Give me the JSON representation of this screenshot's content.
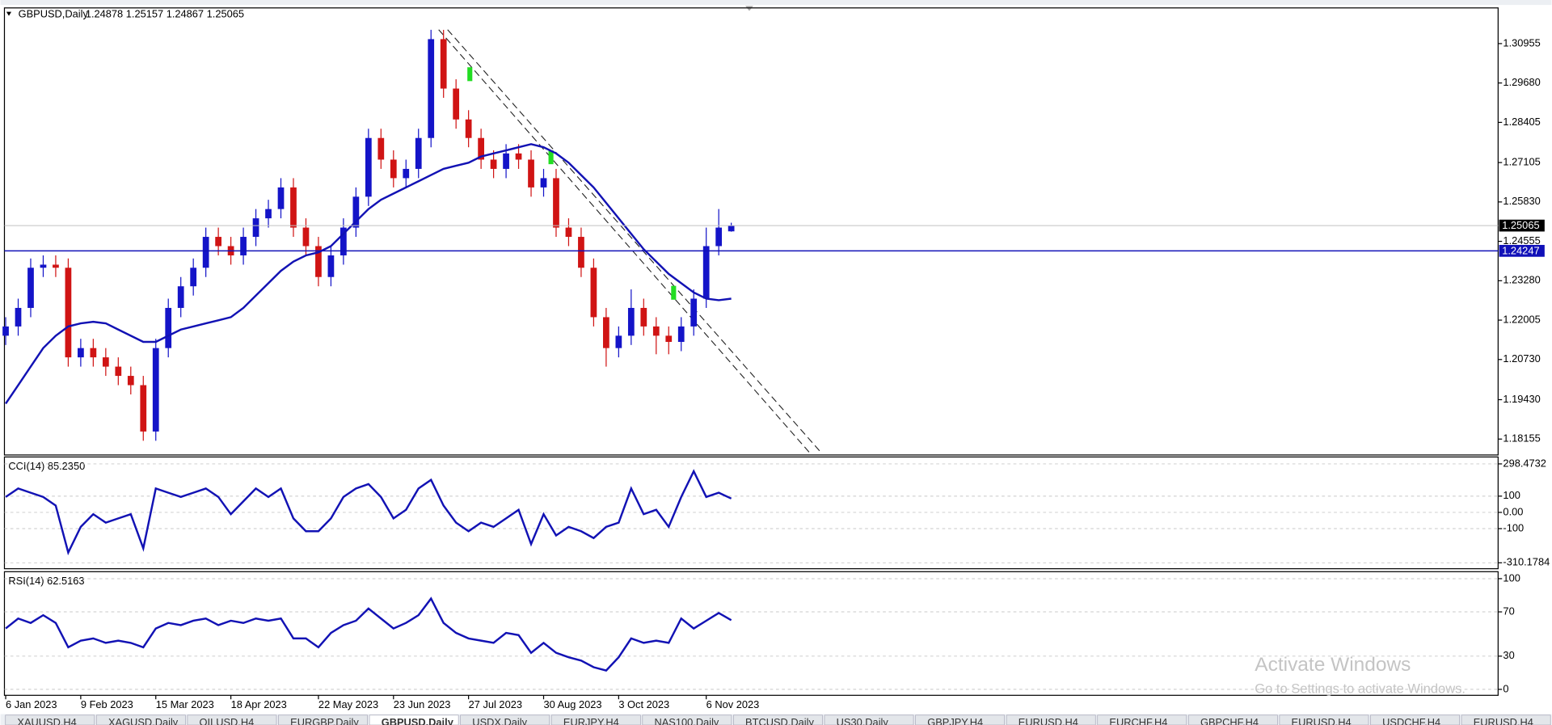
{
  "header": {
    "symbol": "GBPUSD,Daily",
    "ohlc": "1.24878 1.25157 1.24867 1.25065"
  },
  "chart_data": [
    {
      "type": "candlestick",
      "open": [
        1.215,
        1.218,
        1.224,
        1.237,
        1.238,
        1.237,
        1.208,
        1.211,
        1.208,
        1.205,
        1.202,
        1.199,
        1.184,
        1.211,
        1.224,
        1.231,
        1.237,
        1.247,
        1.244,
        1.241,
        1.247,
        1.253,
        1.256,
        1.263,
        1.25,
        1.244,
        1.234,
        1.241,
        1.25,
        1.26,
        1.279,
        1.272,
        1.266,
        1.269,
        1.279,
        1.311,
        1.295,
        1.285,
        1.279,
        1.272,
        1.269,
        1.274,
        1.272,
        1.263,
        1.266,
        1.25,
        1.247,
        1.237,
        1.221,
        1.211,
        1.215,
        1.224,
        1.218,
        1.215,
        1.213,
        1.218,
        1.227,
        1.244,
        1.24878
      ],
      "high": [
        1.221,
        1.227,
        1.24,
        1.241,
        1.241,
        1.24,
        1.214,
        1.214,
        1.211,
        1.208,
        1.205,
        1.202,
        1.214,
        1.227,
        1.234,
        1.24,
        1.25,
        1.25,
        1.247,
        1.25,
        1.256,
        1.259,
        1.266,
        1.266,
        1.253,
        1.247,
        1.244,
        1.253,
        1.263,
        1.282,
        1.282,
        1.275,
        1.272,
        1.282,
        1.314,
        1.314,
        1.298,
        1.288,
        1.282,
        1.275,
        1.277,
        1.277,
        1.275,
        1.269,
        1.269,
        1.253,
        1.25,
        1.24,
        1.224,
        1.218,
        1.23,
        1.227,
        1.221,
        1.218,
        1.221,
        1.23,
        1.25,
        1.256,
        1.25157
      ],
      "low": [
        1.212,
        1.215,
        1.221,
        1.234,
        1.234,
        1.205,
        1.205,
        1.205,
        1.202,
        1.199,
        1.196,
        1.181,
        1.181,
        1.208,
        1.221,
        1.228,
        1.234,
        1.241,
        1.238,
        1.238,
        1.244,
        1.25,
        1.253,
        1.247,
        1.241,
        1.231,
        1.231,
        1.238,
        1.247,
        1.257,
        1.269,
        1.263,
        1.263,
        1.266,
        1.276,
        1.292,
        1.282,
        1.276,
        1.269,
        1.266,
        1.266,
        1.269,
        1.26,
        1.26,
        1.247,
        1.244,
        1.234,
        1.218,
        1.205,
        1.208,
        1.212,
        1.215,
        1.209,
        1.209,
        1.21,
        1.215,
        1.224,
        1.241,
        1.24867
      ],
      "close": [
        1.218,
        1.224,
        1.237,
        1.238,
        1.237,
        1.208,
        1.211,
        1.208,
        1.205,
        1.202,
        1.199,
        1.184,
        1.211,
        1.224,
        1.231,
        1.237,
        1.247,
        1.244,
        1.241,
        1.247,
        1.253,
        1.256,
        1.263,
        1.25,
        1.244,
        1.234,
        1.241,
        1.25,
        1.26,
        1.279,
        1.272,
        1.266,
        1.269,
        1.279,
        1.311,
        1.295,
        1.285,
        1.279,
        1.272,
        1.269,
        1.274,
        1.272,
        1.263,
        1.266,
        1.25,
        1.247,
        1.237,
        1.221,
        1.211,
        1.215,
        1.224,
        1.218,
        1.215,
        1.213,
        1.218,
        1.227,
        1.244,
        1.25,
        1.25065
      ],
      "up_color": "#1414c8",
      "down_color": "#d01414",
      "series": [
        {
          "color": "#1212b4",
          "values": [
            1.193,
            1.199,
            1.205,
            1.211,
            1.215,
            1.218,
            1.219,
            1.2195,
            1.219,
            1.217,
            1.215,
            1.213,
            1.213,
            1.215,
            1.217,
            1.218,
            1.219,
            1.22,
            1.221,
            1.224,
            1.228,
            1.232,
            1.236,
            1.239,
            1.241,
            1.242,
            1.244,
            1.248,
            1.252,
            1.256,
            1.259,
            1.261,
            1.263,
            1.265,
            1.267,
            1.269,
            1.27,
            1.271,
            1.273,
            1.274,
            1.275,
            1.276,
            1.277,
            1.276,
            1.274,
            1.271,
            1.267,
            1.263,
            1.258,
            1.253,
            1.248,
            1.243,
            1.239,
            1.235,
            1.232,
            1.229,
            1.227,
            1.2265,
            1.227
          ]
        }
      ],
      "hlines": [
        {
          "value": 1.24247,
          "label": "1.24247",
          "color": "#1010b8"
        }
      ],
      "xlim": [
        -0.1,
        119.3
      ],
      "xticks": [
        {
          "value": 0,
          "label": "6 Jan 2023"
        },
        {
          "value": 6,
          "label": "9 Feb 2023"
        },
        {
          "value": 12,
          "label": "15 Mar 2023"
        },
        {
          "value": 18,
          "label": "18 Apr 2023"
        },
        {
          "value": 25,
          "label": "22 May 2023"
        },
        {
          "value": 31,
          "label": "23 Jun 2023"
        },
        {
          "value": 37,
          "label": "27 Jul 2023"
        },
        {
          "value": 43,
          "label": "30 Aug 2023"
        },
        {
          "value": 49,
          "label": "3 Oct 2023"
        },
        {
          "value": 56,
          "label": "6 Nov 2023"
        }
      ],
      "ylim": [
        1.1764,
        1.3211
      ],
      "yticks": [
        1.30955,
        {
          "value": 1.2968,
          "label": "1.29680"
        },
        1.28405,
        1.27105,
        {
          "value": 1.2583,
          "label": "1.25830"
        },
        1.24555,
        {
          "value": 1.2328,
          "label": "1.23280"
        },
        1.22005,
        {
          "value": 1.2073,
          "label": "1.20730"
        },
        {
          "value": 1.1943,
          "label": "1.19430"
        },
        1.18155
      ],
      "grid": false
    },
    {
      "type": "line",
      "title": "CCI(14) 85.2350",
      "color": "#1212b4",
      "values": [
        95,
        147,
        121,
        95,
        42,
        -247,
        -89,
        -11,
        -63,
        -37,
        -11,
        -221,
        147,
        121,
        95,
        121,
        147,
        95,
        -11,
        68,
        147,
        95,
        147,
        -37,
        -116,
        -116,
        -37,
        95,
        147,
        174,
        95,
        -37,
        16,
        147,
        200,
        42,
        -63,
        -116,
        -63,
        -89,
        -37,
        16,
        -195,
        -11,
        -142,
        -89,
        -116,
        -158,
        -89,
        -63,
        147,
        -11,
        16,
        -89,
        95,
        253,
        95,
        121,
        85.235
      ],
      "ylim": [
        -346.7,
        341.1
      ],
      "yticks": [
        298.4732,
        100,
        {
          "value": 0,
          "label": "0.00"
        },
        -100,
        -310.1784
      ],
      "grid": true
    },
    {
      "type": "line",
      "title": "RSI(14) 62.5163",
      "color": "#1212b4",
      "values": [
        55,
        64,
        60,
        67,
        60,
        38,
        44,
        46,
        42,
        44,
        42,
        38,
        55,
        60,
        58,
        62,
        64,
        58,
        62,
        60,
        64,
        62,
        64,
        46,
        46,
        38,
        51,
        58,
        62,
        73,
        64,
        55,
        60,
        67,
        82,
        60,
        51,
        46,
        44,
        42,
        51,
        49,
        33,
        42,
        33,
        29,
        26,
        20,
        17,
        29,
        46,
        42,
        44,
        42,
        64,
        55,
        62,
        69,
        62.5163
      ],
      "ylim": [
        -5.4,
        106.3
      ],
      "yticks": [
        100,
        70,
        30,
        0
      ],
      "grid": true
    }
  ],
  "tabs": [
    {
      "label": "XAUUSD,H4",
      "active": false
    },
    {
      "label": "XAGUSD,Daily",
      "active": false
    },
    {
      "label": "OILUSD,H4",
      "active": false
    },
    {
      "label": "EURGBP,Daily",
      "active": false
    },
    {
      "label": "GBPUSD,Daily",
      "active": true
    },
    {
      "label": "USDX,Daily",
      "active": false
    },
    {
      "label": "EURJPY,H4",
      "active": false
    },
    {
      "label": "NAS100,Daily",
      "active": false
    },
    {
      "label": "BTCUSD,Daily",
      "active": false
    },
    {
      "label": "US30,Daily",
      "active": false
    },
    {
      "label": "GBPJPY,H4",
      "active": false
    },
    {
      "label": "EURUSD,H4",
      "active": false
    },
    {
      "label": "EURCHF,H4",
      "active": false
    },
    {
      "label": "GBPCHF,H4",
      "active": false
    },
    {
      "label": "EURUSD,H4",
      "active": false
    },
    {
      "label": "USDCHF,H4",
      "active": false
    },
    {
      "label": "EURUSD,H4",
      "active": false
    }
  ],
  "watermark": {
    "title": "Activate Windows",
    "subtitle": "Go to Settings to activate Windows."
  }
}
